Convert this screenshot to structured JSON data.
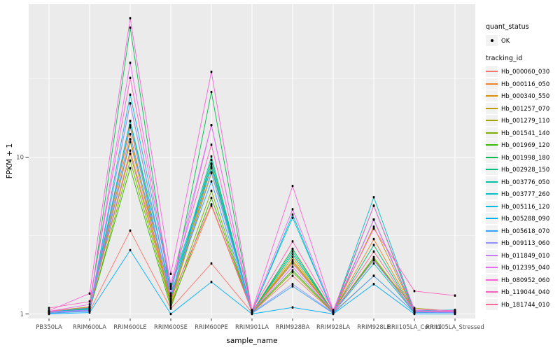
{
  "colors": {
    "panel_bg": "#EBEBEB",
    "grid": "#FFFFFF",
    "axis_text": "#4D4D4D",
    "tick_mark": "#333333",
    "point": "#000000",
    "legend_key_bg": "#F2F2F2"
  },
  "axes": {
    "x": {
      "title": "sample_name",
      "labels": [
        "PB350LA",
        "RRIM600LA",
        "RRIM600LE",
        "RRIM600SE",
        "RRIM600PE",
        "RRIM901LA",
        "RRIM928BA",
        "RRIM928LA",
        "RRIM928LE",
        "RRII105LA_Control",
        "RRII105LA_Stressed"
      ]
    },
    "y": {
      "title": "FPKM + 1",
      "ticks": [
        {
          "label": "1",
          "value": 1
        },
        {
          "label": "10",
          "value": 10
        }
      ]
    }
  },
  "legend": {
    "quant": {
      "title": "quant_status",
      "items": [
        {
          "label": "OK"
        }
      ]
    },
    "tracking": {
      "title": "tracking_id"
    }
  },
  "chart_data": {
    "type": "line",
    "title": "",
    "xlabel": "sample_name",
    "ylabel": "FPKM + 1",
    "yscale": "log10",
    "ylim": [
      0.95,
      95
    ],
    "grid": "white-on-gray, major at 1 and 10, minor at 3.16 and 31.6",
    "legend_position": "right",
    "point_marker": "small black square (quant_status OK)",
    "categories": [
      "PB350LA",
      "RRIM600LA",
      "RRIM600LE",
      "RRIM600SE",
      "RRIM600PE",
      "RRIM901LA",
      "RRIM928BA",
      "RRIM928LA",
      "RRIM928LE",
      "RRII105LA_Control",
      "RRII105LA_Stressed"
    ],
    "series": [
      {
        "id": "Hb_000060_030",
        "color": "#F8766D",
        "values": [
          1.02,
          1.04,
          3.4,
          1.08,
          2.1,
          1.02,
          1.75,
          1.02,
          1.75,
          1.02,
          1.02
        ]
      },
      {
        "id": "Hb_000116_050",
        "color": "#EA8331",
        "values": [
          1.03,
          1.07,
          14,
          1.14,
          4.9,
          1.03,
          2.6,
          1.03,
          3.0,
          1.04,
          1.03
        ]
      },
      {
        "id": "Hb_000340_550",
        "color": "#D89000",
        "values": [
          1.02,
          1.06,
          16,
          1.18,
          8.7,
          1.02,
          2.3,
          1.02,
          3.6,
          1.03,
          1.02
        ]
      },
      {
        "id": "Hb_001257_070",
        "color": "#C09B00",
        "values": [
          1.03,
          1.09,
          12.5,
          1.22,
          9.1,
          1.03,
          2.2,
          1.03,
          4.0,
          1.05,
          1.03
        ]
      },
      {
        "id": "Hb_001279_110",
        "color": "#A3A500",
        "values": [
          1.04,
          1.11,
          10.5,
          1.2,
          7.9,
          1.04,
          2.15,
          1.04,
          2.2,
          1.09,
          1.04
        ]
      },
      {
        "id": "Hb_001541_140",
        "color": "#7CAE00",
        "values": [
          1.02,
          1.05,
          9.5,
          1.15,
          6.1,
          1.02,
          1.85,
          1.02,
          2.3,
          1.03,
          1.02
        ]
      },
      {
        "id": "Hb_001969_120",
        "color": "#39B600",
        "values": [
          1.03,
          1.06,
          8.5,
          1.1,
          5.5,
          1.03,
          1.9,
          1.03,
          2.25,
          1.02,
          1.03
        ]
      },
      {
        "id": "Hb_001998_180",
        "color": "#00BB4E",
        "values": [
          1.02,
          1.1,
          67,
          1.3,
          26,
          1.02,
          2.6,
          1.02,
          4.9,
          1.04,
          1.02
        ]
      },
      {
        "id": "Hb_002928_150",
        "color": "#00BF7D",
        "values": [
          1.03,
          1.08,
          17,
          1.25,
          9.6,
          1.03,
          2.4,
          1.03,
          2.75,
          1.03,
          1.03
        ]
      },
      {
        "id": "Hb_003776_050",
        "color": "#00C1A3",
        "values": [
          1.02,
          1.06,
          22,
          1.3,
          10.1,
          1.02,
          2.5,
          1.02,
          2.1,
          1.02,
          1.02
        ]
      },
      {
        "id": "Hb_003777_260",
        "color": "#00BFC4",
        "values": [
          1.03,
          1.09,
          17,
          1.45,
          8.5,
          1.03,
          4.1,
          1.03,
          5.55,
          1.05,
          1.06
        ]
      },
      {
        "id": "Hb_005116_120",
        "color": "#00BAE0",
        "values": [
          1.02,
          1.07,
          25,
          1.5,
          9.0,
          1.02,
          4.3,
          1.02,
          4.0,
          1.03,
          1.05
        ]
      },
      {
        "id": "Hb_005288_090",
        "color": "#00B0F6",
        "values": [
          1.0,
          1.02,
          2.55,
          1.0,
          1.6,
          1.0,
          1.1,
          1.0,
          1.55,
          1.0,
          1.0
        ]
      },
      {
        "id": "Hb_005618_070",
        "color": "#35A2FF",
        "values": [
          1.01,
          1.04,
          13,
          1.35,
          7.0,
          1.01,
          1.5,
          1.01,
          1.75,
          1.02,
          1.02
        ]
      },
      {
        "id": "Hb_009113_060",
        "color": "#9590FF",
        "values": [
          1.02,
          1.05,
          15.5,
          1.3,
          8.0,
          1.02,
          1.55,
          1.02,
          2.2,
          1.03,
          1.02
        ]
      },
      {
        "id": "Hb_011849_010",
        "color": "#C77CFF",
        "values": [
          1.03,
          1.06,
          22,
          1.35,
          16,
          1.03,
          2.0,
          1.03,
          2.2,
          1.04,
          1.03
        ]
      },
      {
        "id": "Hb_012395_040",
        "color": "#E76BF3",
        "values": [
          1.04,
          1.15,
          40,
          1.55,
          16,
          1.04,
          4.65,
          1.04,
          4.0,
          1.05,
          1.04
        ]
      },
      {
        "id": "Hb_080952_060",
        "color": "#FA62DB",
        "values": [
          1.05,
          1.35,
          77,
          1.8,
          35,
          1.05,
          6.55,
          1.05,
          4.9,
          1.07,
          1.05
        ]
      },
      {
        "id": "Hb_119044_040",
        "color": "#FF62BC",
        "values": [
          1.09,
          1.2,
          32,
          1.5,
          12,
          1.06,
          2.9,
          1.06,
          3.5,
          1.4,
          1.31
        ]
      },
      {
        "id": "Hb_181744_010",
        "color": "#FF6A98",
        "values": [
          1.04,
          1.1,
          11,
          1.25,
          5.0,
          1.04,
          2.1,
          1.04,
          2.5,
          1.04,
          1.04
        ]
      }
    ]
  }
}
